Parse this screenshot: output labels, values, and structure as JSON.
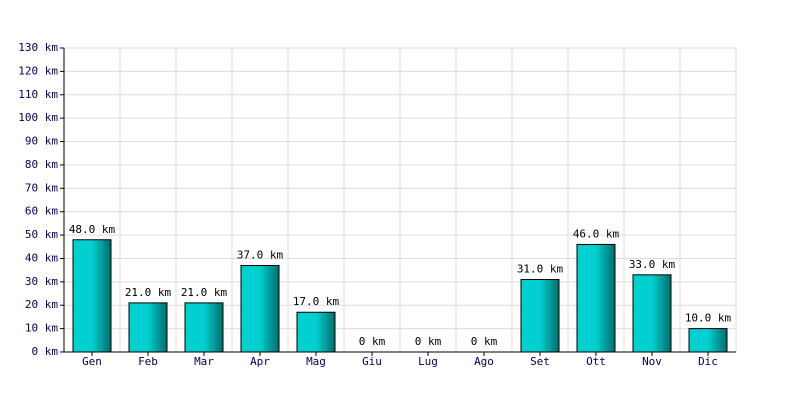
{
  "chart_data": {
    "type": "bar",
    "categories": [
      "Gen",
      "Feb",
      "Mar",
      "Apr",
      "Mag",
      "Giu",
      "Lug",
      "Ago",
      "Set",
      "Ott",
      "Nov",
      "Dic"
    ],
    "values": [
      48,
      21,
      21,
      37,
      17,
      0,
      0,
      0,
      31,
      46,
      33,
      10
    ],
    "value_labels": [
      "48.0 km",
      "21.0 km",
      "21.0 km",
      "37.0 km",
      "17.0 km",
      "0 km",
      "0 km",
      "0 km",
      "31.0 km",
      "46.0 km",
      "33.0 km",
      "10.0 km"
    ],
    "color": "#00d0d0",
    "ylim": [
      0,
      130
    ],
    "yticks": [
      {
        "value": 0,
        "label": "0 km"
      },
      {
        "value": 10,
        "label": "10 km"
      },
      {
        "value": 20,
        "label": "20 km"
      },
      {
        "value": 30,
        "label": "30 km"
      },
      {
        "value": 40,
        "label": "40 km"
      },
      {
        "value": 50,
        "label": "50 km"
      },
      {
        "value": 60,
        "label": "60 km"
      },
      {
        "value": 70,
        "label": "70 km"
      },
      {
        "value": 80,
        "label": "80 km"
      },
      {
        "value": 90,
        "label": "90 km"
      },
      {
        "value": 100,
        "label": "100 km"
      },
      {
        "value": 110,
        "label": "110 km"
      },
      {
        "value": 120,
        "label": "120 km"
      },
      {
        "value": 130,
        "label": "130 km"
      }
    ],
    "grid": true
  }
}
